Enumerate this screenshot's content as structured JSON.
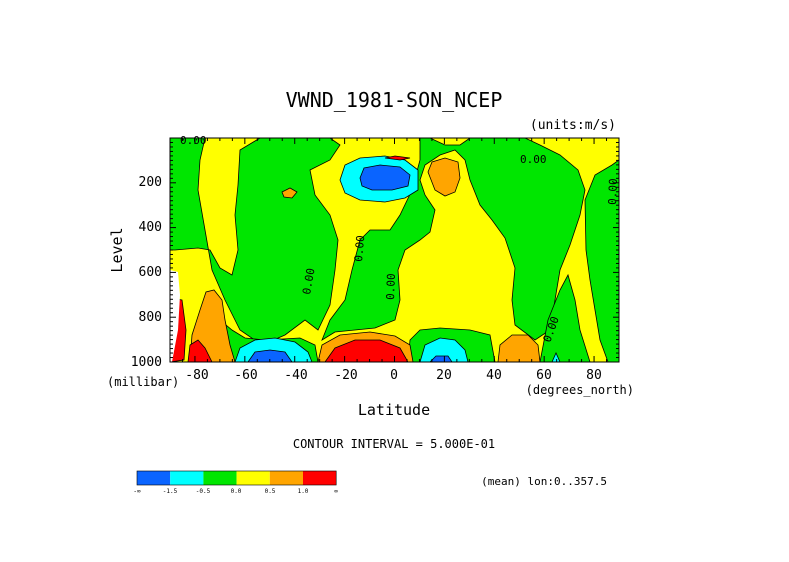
{
  "chart_data": {
    "type": "filled-contour",
    "title": "VWND_1981-SON_NCEP",
    "units": "(units:m/s)",
    "xlabel": "Latitude",
    "ylabel": "Level",
    "x_unit": "(degrees_north)",
    "y_unit": "(millibar)",
    "xlim": [
      -90,
      90
    ],
    "ylim": [
      1000,
      0
    ],
    "x_ticks": [
      -80,
      -60,
      -40,
      -20,
      0,
      20,
      40,
      60,
      80
    ],
    "x_tick_labels": [
      "-80",
      "-60",
      "-40",
      "-20",
      "0",
      "20",
      "40",
      "60",
      "80"
    ],
    "y_ticks": [
      200,
      400,
      600,
      800,
      1000
    ],
    "y_tick_labels": [
      "200",
      "400",
      "600",
      "800",
      "1000"
    ],
    "contour_interval_text": "CONTOUR INTERVAL = 5.000E-01",
    "mean_text": "(mean) lon:0..357.5",
    "contour_labels": [
      "0.00"
    ],
    "colorbar": {
      "colors": [
        "#0a64ff",
        "#00ffff",
        "#00e600",
        "#ffff00",
        "#ffa500",
        "#ff0000"
      ],
      "labels": [
        "-∞",
        "-1.5",
        "-0.5",
        "0.0",
        "0.5",
        "1.0",
        "∞"
      ]
    },
    "regions": {
      "positive_low": "#ffff00",
      "negative_low": "#00e600",
      "positive_mid": "#ffa500",
      "positive_high": "#ff0000",
      "negative_mid": "#00ffff",
      "negative_high": "#0a64ff"
    }
  }
}
